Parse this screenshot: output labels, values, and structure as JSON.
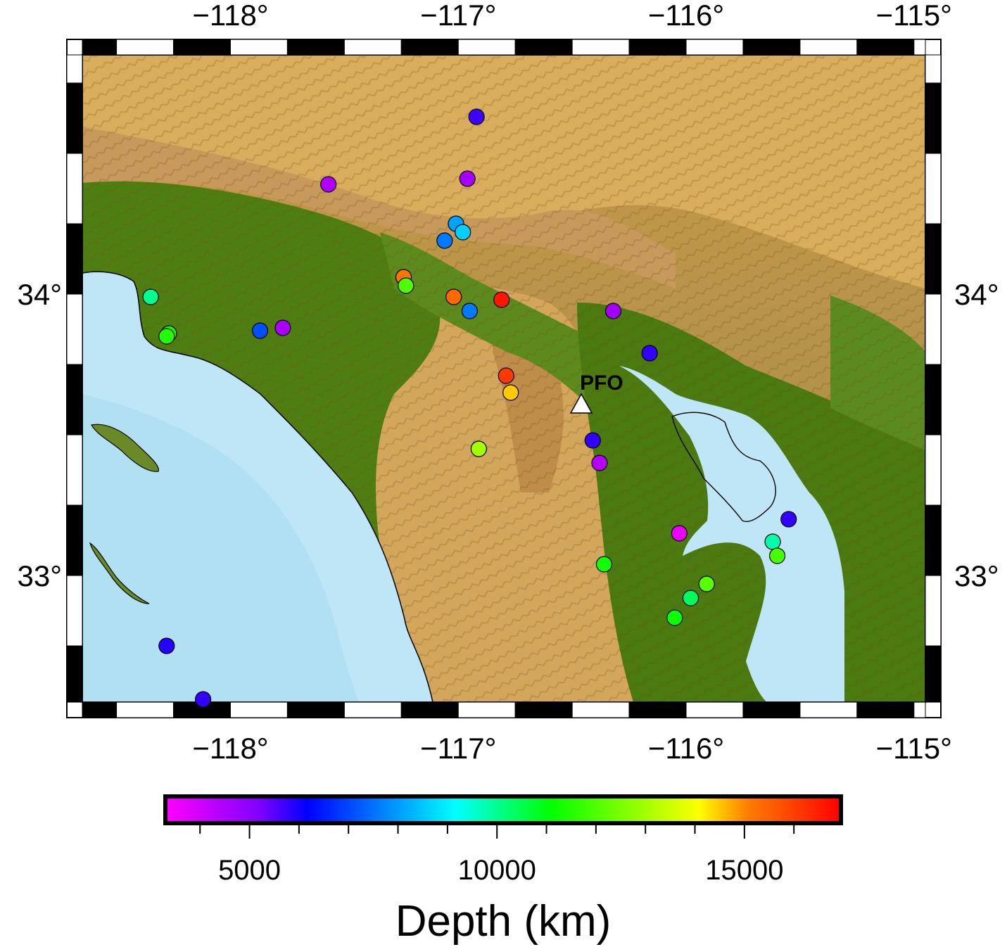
{
  "map": {
    "lon_range": [
      -118.65,
      -114.95
    ],
    "lat_range": [
      32.55,
      34.85
    ],
    "lon_ticks": [
      {
        "value": -118,
        "label": "−118°"
      },
      {
        "value": -117,
        "label": "−117°"
      },
      {
        "value": -116,
        "label": "−116°"
      },
      {
        "value": -115,
        "label": "−115°"
      }
    ],
    "lat_ticks": [
      {
        "value": 33,
        "label": "33°"
      },
      {
        "value": 34,
        "label": "34°"
      }
    ],
    "station": {
      "name": "PFO",
      "lon": -116.46,
      "lat": 33.61
    },
    "colors": {
      "ocean": "#bfe6f6",
      "lowland": "#4e7d12",
      "mountains": "#d8ad5c",
      "station_marker": "#ffffff"
    }
  },
  "chart_data": {
    "type": "scatter",
    "x_axis": "longitude",
    "y_axis": "latitude",
    "color_variable": "Depth (km)",
    "points": [
      {
        "lon": -116.92,
        "lat": 34.63,
        "depth": 5700
      },
      {
        "lon": -116.96,
        "lat": 34.41,
        "depth": 4600
      },
      {
        "lon": -117.57,
        "lat": 34.39,
        "depth": 4500
      },
      {
        "lon": -117.01,
        "lat": 34.25,
        "depth": 8100
      },
      {
        "lon": -116.98,
        "lat": 34.22,
        "depth": 8600
      },
      {
        "lon": -117.06,
        "lat": 34.19,
        "depth": 7600
      },
      {
        "lon": -117.24,
        "lat": 34.06,
        "depth": 15200
      },
      {
        "lon": -117.23,
        "lat": 34.03,
        "depth": 12000
      },
      {
        "lon": -117.02,
        "lat": 33.99,
        "depth": 15400
      },
      {
        "lon": -116.81,
        "lat": 33.98,
        "depth": 16600
      },
      {
        "lon": -116.95,
        "lat": 33.94,
        "depth": 7600
      },
      {
        "lon": -116.32,
        "lat": 33.94,
        "depth": 4700
      },
      {
        "lon": -118.35,
        "lat": 33.99,
        "depth": 10000
      },
      {
        "lon": -117.77,
        "lat": 33.88,
        "depth": 4600
      },
      {
        "lon": -117.87,
        "lat": 33.87,
        "depth": 7100
      },
      {
        "lon": -118.27,
        "lat": 33.86,
        "depth": 11300
      },
      {
        "lon": -118.28,
        "lat": 33.85,
        "depth": 11500
      },
      {
        "lon": -116.16,
        "lat": 33.79,
        "depth": 5800
      },
      {
        "lon": -116.79,
        "lat": 33.71,
        "depth": 16100
      },
      {
        "lon": -116.77,
        "lat": 33.65,
        "depth": 14500
      },
      {
        "lon": -116.41,
        "lat": 33.48,
        "depth": 5800
      },
      {
        "lon": -116.38,
        "lat": 33.4,
        "depth": 4400
      },
      {
        "lon": -116.91,
        "lat": 33.45,
        "depth": 13000
      },
      {
        "lon": -116.03,
        "lat": 33.15,
        "depth": 3600
      },
      {
        "lon": -115.55,
        "lat": 33.2,
        "depth": 5800
      },
      {
        "lon": -115.62,
        "lat": 33.12,
        "depth": 9800
      },
      {
        "lon": -115.6,
        "lat": 33.07,
        "depth": 11900
      },
      {
        "lon": -116.36,
        "lat": 33.04,
        "depth": 11300
      },
      {
        "lon": -115.91,
        "lat": 32.97,
        "depth": 12100
      },
      {
        "lon": -115.98,
        "lat": 32.92,
        "depth": 10400
      },
      {
        "lon": -116.05,
        "lat": 32.85,
        "depth": 11200
      },
      {
        "lon": -118.28,
        "lat": 32.75,
        "depth": 5900
      },
      {
        "lon": -118.12,
        "lat": 32.56,
        "depth": 5800
      }
    ],
    "colorbar": {
      "title": "Depth (km)",
      "range": [
        3300,
        16950
      ],
      "major_ticks": [
        5000,
        10000,
        15000
      ],
      "minor_ticks": [
        4000,
        6000,
        7000,
        8000,
        9000,
        11000,
        12000,
        13000,
        14000,
        16000
      ],
      "stops": [
        {
          "v": 0.0,
          "c": "#ff00ff"
        },
        {
          "v": 0.14,
          "c": "#7f00ff"
        },
        {
          "v": 0.21,
          "c": "#0000ff"
        },
        {
          "v": 0.43,
          "c": "#00ffff"
        },
        {
          "v": 0.57,
          "c": "#00ff00"
        },
        {
          "v": 0.79,
          "c": "#ffff00"
        },
        {
          "v": 0.86,
          "c": "#ff8000"
        },
        {
          "v": 1.0,
          "c": "#ff0000"
        }
      ]
    }
  }
}
